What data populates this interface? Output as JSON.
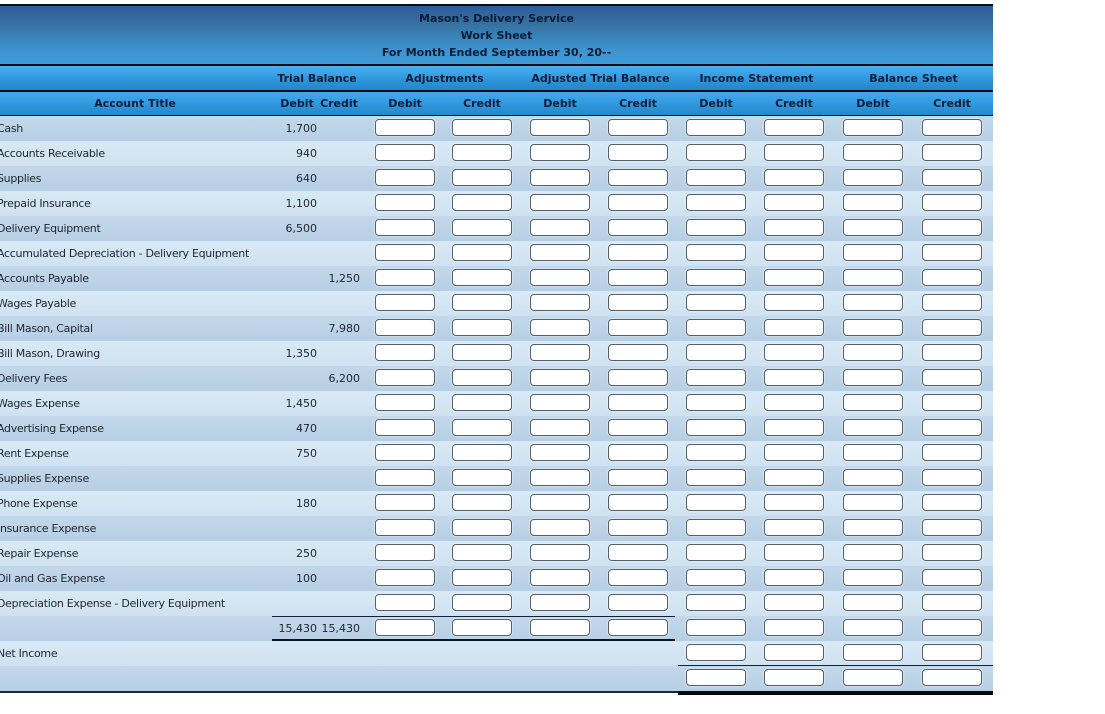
{
  "header": {
    "company": "Mason's Delivery Service",
    "report": "Work Sheet",
    "period": "For Month Ended September 30, 20--"
  },
  "columns": {
    "account_title_label": "Account Title",
    "sections": [
      "Trial Balance",
      "Adjustments",
      "Adjusted Trial Balance",
      "Income Statement",
      "Balance Sheet"
    ],
    "debit_label": "Debit",
    "credit_label": "Credit"
  },
  "colors": {
    "band_blue_top": "#4ab0f0",
    "band_blue_bottom": "#2385c6",
    "title_gradient_top": "#2c5c9c",
    "title_gradient_bottom": "#3f9cd9",
    "row_dark": "#b7cfe4",
    "row_light": "#cfe2f1",
    "header_text": "#081d38",
    "body_text": "#1e2530"
  },
  "rows": [
    {
      "account": "Cash",
      "tb_debit": "1,700",
      "tb_credit": "",
      "inputs": "all"
    },
    {
      "account": "Accounts Receivable",
      "tb_debit": "940",
      "tb_credit": "",
      "inputs": "all"
    },
    {
      "account": "Supplies",
      "tb_debit": "640",
      "tb_credit": "",
      "inputs": "all"
    },
    {
      "account": "Prepaid Insurance",
      "tb_debit": "1,100",
      "tb_credit": "",
      "inputs": "all"
    },
    {
      "account": "Delivery Equipment",
      "tb_debit": "6,500",
      "tb_credit": "",
      "inputs": "all"
    },
    {
      "account": "Accumulated Depreciation - Delivery Equipment",
      "tb_debit": "",
      "tb_credit": "",
      "inputs": "all"
    },
    {
      "account": "Accounts Payable",
      "tb_debit": "",
      "tb_credit": "1,250",
      "inputs": "all"
    },
    {
      "account": "Wages Payable",
      "tb_debit": "",
      "tb_credit": "",
      "inputs": "all"
    },
    {
      "account": "Bill Mason, Capital",
      "tb_debit": "",
      "tb_credit": "7,980",
      "inputs": "all"
    },
    {
      "account": "Bill Mason, Drawing",
      "tb_debit": "1,350",
      "tb_credit": "",
      "inputs": "all"
    },
    {
      "account": "Delivery Fees",
      "tb_debit": "",
      "tb_credit": "6,200",
      "inputs": "all"
    },
    {
      "account": "Wages Expense",
      "tb_debit": "1,450",
      "tb_credit": "",
      "inputs": "all"
    },
    {
      "account": "Advertising Expense",
      "tb_debit": "470",
      "tb_credit": "",
      "inputs": "all"
    },
    {
      "account": "Rent Expense",
      "tb_debit": "750",
      "tb_credit": "",
      "inputs": "all"
    },
    {
      "account": "Supplies Expense",
      "tb_debit": "",
      "tb_credit": "",
      "inputs": "all"
    },
    {
      "account": "Phone Expense",
      "tb_debit": "180",
      "tb_credit": "",
      "inputs": "all"
    },
    {
      "account": "Insurance Expense",
      "tb_debit": "",
      "tb_credit": "",
      "inputs": "all"
    },
    {
      "account": "Repair Expense",
      "tb_debit": "250",
      "tb_credit": "",
      "inputs": "all"
    },
    {
      "account": "Oil and Gas Expense",
      "tb_debit": "100",
      "tb_credit": "",
      "inputs": "all"
    },
    {
      "account": "Depreciation Expense - Delivery Equipment",
      "tb_debit": "",
      "tb_credit": "",
      "inputs": "all"
    },
    {
      "account": "",
      "tb_debit": "15,430",
      "tb_credit": "15,430",
      "inputs": "all",
      "totals_row": true
    },
    {
      "account": "Net Income",
      "tb_debit": "",
      "tb_credit": "",
      "inputs": "right4",
      "net_income_row": true
    },
    {
      "account": "",
      "tb_debit": "",
      "tb_credit": "",
      "inputs": "right4",
      "last_row": true
    }
  ],
  "input_columns": [
    "adjustments-debit",
    "adjustments-credit",
    "adjusted-trial-balance-debit",
    "adjusted-trial-balance-credit",
    "income-statement-debit",
    "income-statement-credit",
    "balance-sheet-debit",
    "balance-sheet-credit"
  ]
}
